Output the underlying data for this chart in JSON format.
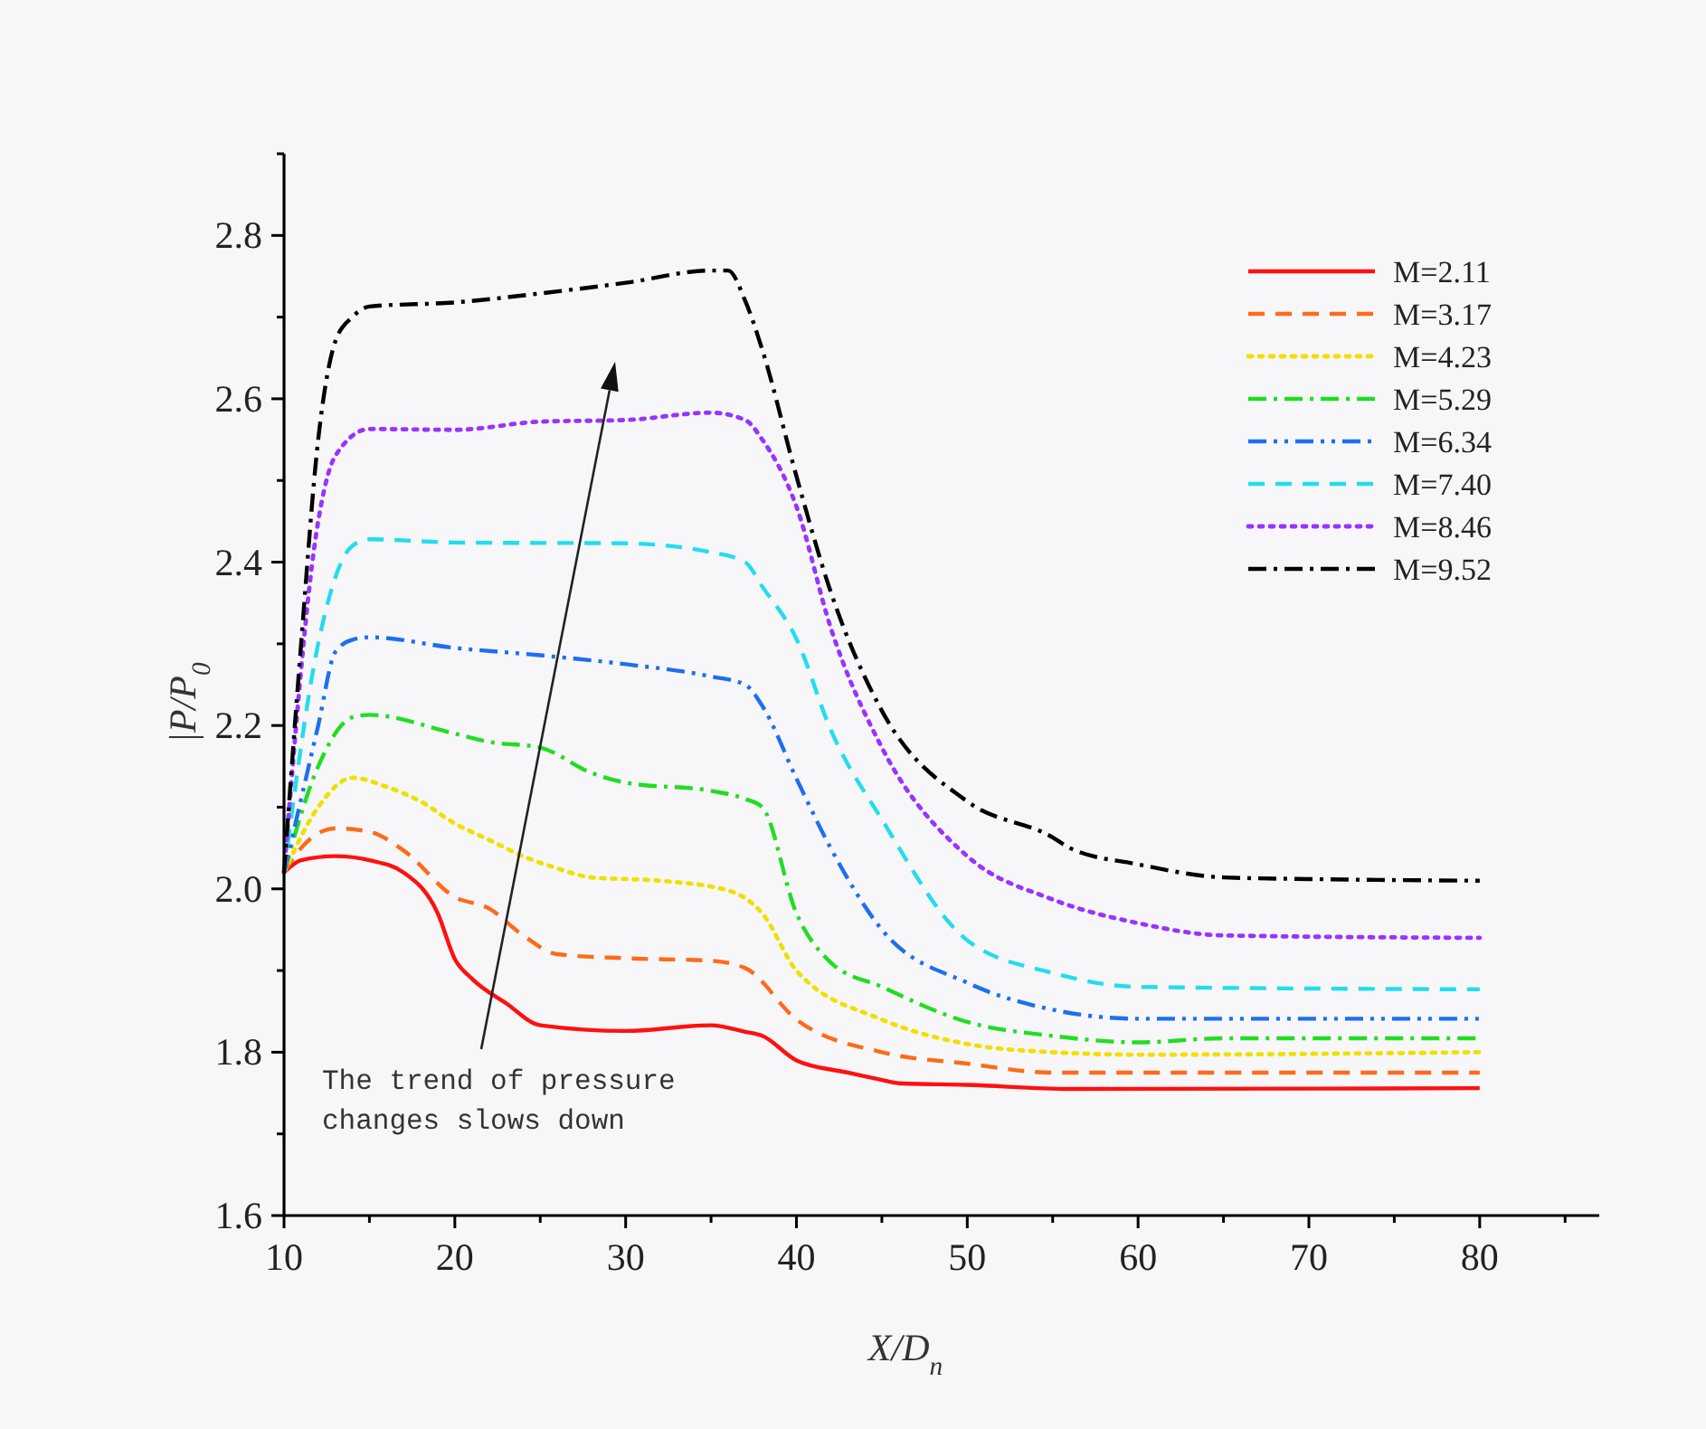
{
  "chart_data": {
    "type": "line",
    "xlabel": "X/D$_{n}$",
    "ylabel": "|P/P$_{0}$",
    "xlim": [
      10,
      87
    ],
    "ylim": [
      1.6,
      2.9
    ],
    "xticks": [
      10,
      {
        "value": 15,
        "label": null
      },
      20,
      {
        "value": 25,
        "label": null
      },
      30,
      {
        "value": 35,
        "label": null
      },
      40,
      {
        "value": 45,
        "label": null
      },
      50,
      {
        "value": 55,
        "label": null
      },
      60,
      {
        "value": 65,
        "label": null
      },
      70,
      {
        "value": 75,
        "label": null
      },
      80,
      {
        "value": 85,
        "label": null
      }
    ],
    "yticks": [
      1.6,
      {
        "value": 1.7,
        "label": null
      },
      1.8,
      {
        "value": 1.9,
        "label": null
      },
      {
        "value": 2,
        "label": "2.0"
      },
      {
        "value": 2.1,
        "label": null
      },
      2.2,
      {
        "value": 2.3,
        "label": null
      },
      2.4,
      {
        "value": 2.5,
        "label": null
      },
      2.6,
      {
        "value": 2.7,
        "label": null
      },
      2.8,
      {
        "value": 2.9,
        "label": null
      }
    ],
    "grid": false,
    "legend": "top right",
    "marker": "none",
    "annotations": [
      "The trend of pressure changes slows down"
    ],
    "series": [
      {
        "name": "M=2.11",
        "color": "#ff1010",
        "line_style": "solid",
        "x": [
          10,
          11,
          13,
          15,
          17,
          19,
          20,
          21,
          23,
          25,
          30,
          35,
          37,
          38,
          40,
          43,
          45,
          46,
          50,
          56,
          80
        ],
        "values": [
          2.02,
          2.035,
          2.04,
          2.035,
          2.02,
          1.97,
          1.914,
          1.89,
          1.86,
          1.833,
          1.826,
          1.833,
          1.825,
          1.82,
          1.79,
          1.775,
          1.766,
          1.762,
          1.76,
          1.755,
          1.756
        ]
      },
      {
        "name": "M=3.17",
        "color": "#ff6a1a",
        "line_style": "dashed",
        "x": [
          10,
          11,
          13,
          15,
          17,
          20,
          22,
          24,
          26,
          30,
          35,
          37,
          40,
          45,
          50,
          55,
          60,
          80
        ],
        "values": [
          2.02,
          2.05,
          2.074,
          2.07,
          2.047,
          1.99,
          1.976,
          1.943,
          1.92,
          1.915,
          1.912,
          1.903,
          1.84,
          1.8,
          1.786,
          1.775,
          1.775,
          1.775
        ]
      },
      {
        "name": "M=4.23",
        "color": "#f0e000",
        "line_style": "dotted",
        "x": [
          10,
          12,
          14,
          16,
          18,
          20,
          22,
          24,
          26,
          28,
          32,
          36,
          38,
          40,
          45,
          50,
          55,
          60,
          80
        ],
        "values": [
          2.02,
          2.1,
          2.136,
          2.125,
          2.107,
          2.08,
          2.06,
          2.04,
          2.025,
          2.014,
          2.01,
          1.998,
          1.97,
          1.9,
          1.84,
          1.81,
          1.8,
          1.797,
          1.8
        ]
      },
      {
        "name": "M=5.29",
        "color": "#22dd22",
        "line_style": "dashdot",
        "x": [
          10,
          12,
          14,
          15,
          20,
          22,
          25,
          28,
          30,
          35,
          37,
          38,
          40,
          42,
          45,
          50,
          55,
          60,
          65,
          80
        ],
        "values": [
          2.02,
          2.15,
          2.21,
          2.213,
          2.19,
          2.18,
          2.173,
          2.142,
          2.13,
          2.12,
          2.11,
          2.1,
          1.97,
          1.91,
          1.88,
          1.837,
          1.82,
          1.812,
          1.817,
          1.817
        ]
      },
      {
        "name": "M=6.34",
        "color": "#1e6fef",
        "line_style": "dashdotdot",
        "x": [
          10,
          12,
          13,
          14,
          15,
          20,
          25,
          30,
          35,
          37,
          38,
          40,
          42,
          45,
          50,
          55,
          60,
          80
        ],
        "values": [
          2.02,
          2.2,
          2.29,
          2.305,
          2.308,
          2.295,
          2.286,
          2.275,
          2.26,
          2.25,
          2.224,
          2.135,
          2.05,
          1.95,
          1.885,
          1.852,
          1.841,
          1.841
        ]
      },
      {
        "name": "M=7.40",
        "color": "#22ddee",
        "line_style": "dashed",
        "x": [
          10,
          12,
          14,
          15,
          20,
          30,
          35,
          37,
          38,
          40,
          42,
          45,
          50,
          55,
          60,
          80
        ],
        "values": [
          2.02,
          2.3,
          2.42,
          2.428,
          2.424,
          2.423,
          2.412,
          2.4,
          2.37,
          2.306,
          2.195,
          2.085,
          1.937,
          1.897,
          1.88,
          1.877
        ]
      },
      {
        "name": "M=8.46",
        "color": "#9933ff",
        "line_style": "dotted",
        "x": [
          10,
          12,
          13,
          15,
          20,
          25,
          30,
          35,
          37,
          38,
          40,
          42,
          45,
          50,
          55,
          60,
          65,
          80
        ],
        "values": [
          2.02,
          2.45,
          2.53,
          2.563,
          2.562,
          2.572,
          2.574,
          2.583,
          2.574,
          2.55,
          2.468,
          2.32,
          2.173,
          2.04,
          1.987,
          1.958,
          1.943,
          1.94
        ]
      },
      {
        "name": "M=9.52",
        "color": "#000000",
        "line_style": "dashdot",
        "x": [
          10,
          11,
          12,
          13,
          14,
          15,
          20,
          25,
          30,
          35,
          36,
          37,
          38,
          40,
          42,
          45,
          50,
          55,
          56,
          60,
          65,
          70,
          80
        ],
        "values": [
          2.02,
          2.3,
          2.55,
          2.67,
          2.7,
          2.713,
          2.718,
          2.729,
          2.742,
          2.757,
          2.757,
          2.72,
          2.66,
          2.505,
          2.364,
          2.218,
          2.107,
          2.063,
          2.05,
          2.03,
          2.014,
          2.012,
          2.01
        ]
      }
    ]
  }
}
